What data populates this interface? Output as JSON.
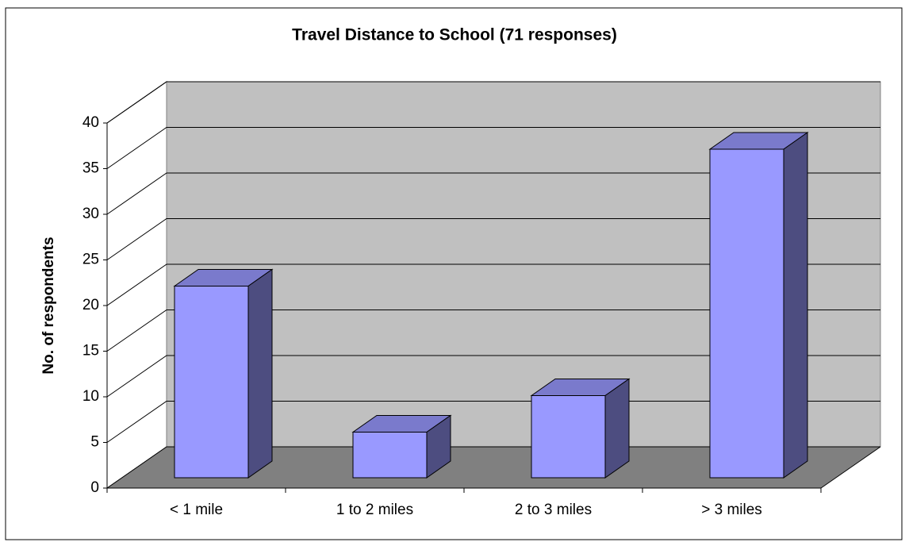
{
  "chart_data": {
    "type": "bar",
    "title": "Travel Distance to School  (71 responses)",
    "y_label": "No. of respondents",
    "categories": [
      "< 1 mile",
      "1 to 2 miles",
      "2 to 3 miles",
      "> 3 miles"
    ],
    "values": [
      21,
      5,
      9,
      36
    ],
    "color": "#9999ff",
    "ylim": [
      0,
      40
    ],
    "yticks": [
      0,
      5,
      10,
      15,
      20,
      25,
      30,
      35,
      40
    ],
    "grid": true
  }
}
